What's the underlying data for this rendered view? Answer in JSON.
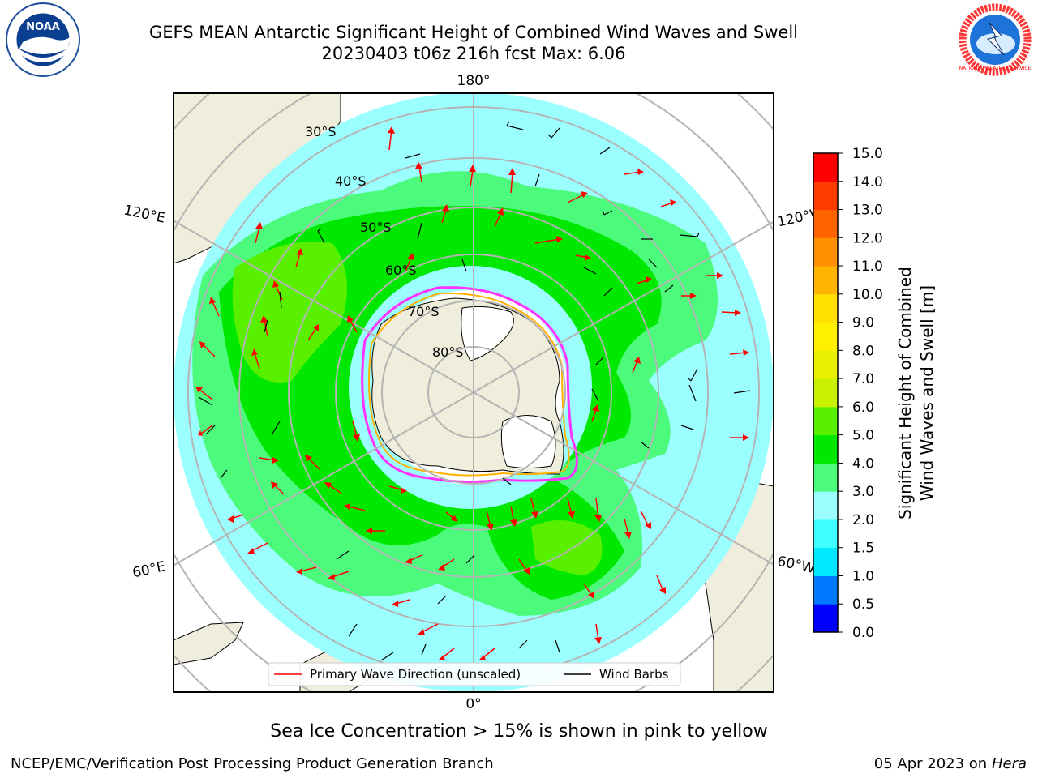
{
  "header": {
    "title_line1": "GEFS MEAN Antarctic Significant Height of Combined Wind Waves and Swell",
    "title_line2": "20230403 t06z 216h fcst   Max: 6.06"
  },
  "logos": {
    "noaa": "NOAA",
    "nws": "NATIONAL WEATHER SERVICE"
  },
  "map": {
    "projection": "south-polar-stereographic",
    "longitude_labels": [
      "180°",
      "120°E",
      "120°W",
      "60°E",
      "60°W",
      "0°"
    ],
    "latitude_labels": [
      "30°S",
      "40°S",
      "50°S",
      "60°S",
      "70°S",
      "80°S"
    ],
    "max_value": 6.06,
    "colors": {
      "land": "#efeddb",
      "antarctic_ice_shelf": "#ffffff",
      "sea_ice_edge_outer": "#ff33ff",
      "sea_ice_edge_inner": "#ffb000",
      "wave_arrow": "#ff0000",
      "wind_barb": "#000000",
      "graticule": "#b4b4b4"
    }
  },
  "colorbar": {
    "label_line1": "Significant Height of Combined",
    "label_line2": "Wind Waves and Swell [m]",
    "ticks": [
      "0.0",
      "0.5",
      "1.0",
      "1.5",
      "2.0",
      "3.0",
      "4.0",
      "5.0",
      "6.0",
      "7.0",
      "8.0",
      "9.0",
      "10.0",
      "11.0",
      "12.0",
      "13.0",
      "14.0",
      "15.0"
    ],
    "colors": [
      "#0000ff",
      "#0078ff",
      "#00e8ff",
      "#40ffff",
      "#9cffff",
      "#4cfb7c",
      "#00e800",
      "#59f000",
      "#c8f000",
      "#e8f000",
      "#fff000",
      "#ffe000",
      "#ffb400",
      "#ff9000",
      "#ff6400",
      "#ff3c00",
      "#ff0000"
    ]
  },
  "legend": {
    "wave_label": "Primary Wave Direction (unscaled)",
    "barb_label": "Wind Barbs"
  },
  "footer": {
    "note": "Sea Ice Concentration > 15% is shown in pink to yellow",
    "credit": "NCEP/EMC/Verification Post Processing Product Generation Branch",
    "date": "05 Apr 2023 on",
    "host": "Hera"
  }
}
